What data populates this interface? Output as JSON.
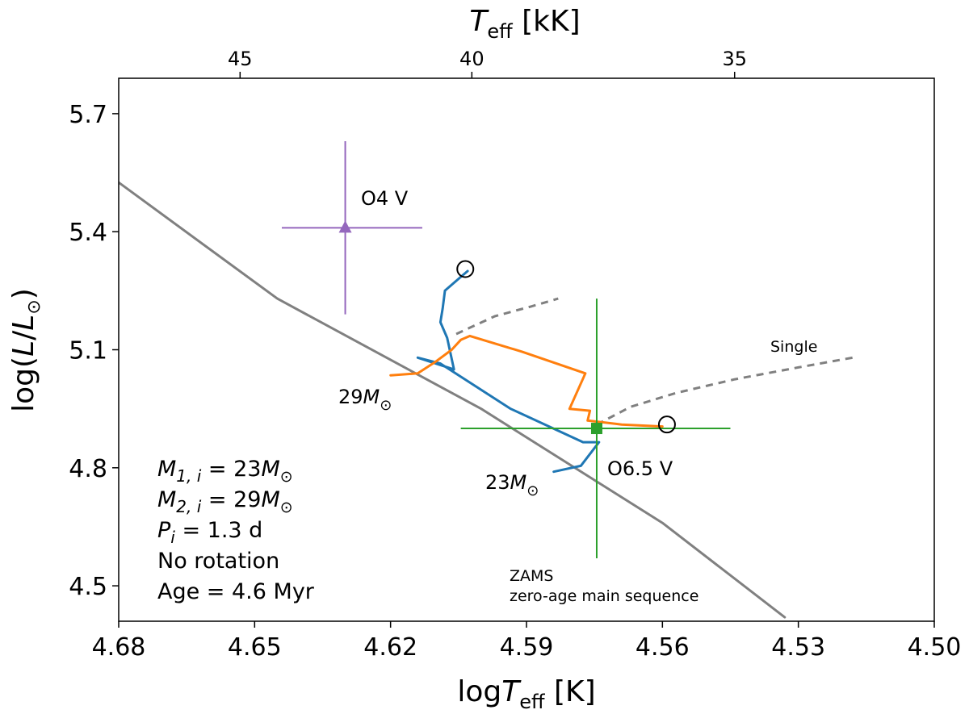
{
  "chart_data": {
    "type": "scatter",
    "title": "",
    "xlabel_main": "log",
    "xlabel_var": "T",
    "xlabel_sub": "eff",
    "xlabel_unit": " [K]",
    "ylabel_prefix": "log(",
    "ylabel_var": "L",
    "ylabel_mid": "/",
    "ylabel_var2": "L",
    "ylabel_sub": "⊙",
    "ylabel_suffix": ")",
    "top_xlabel_var": "T",
    "top_xlabel_sub": "eff",
    "top_xlabel_unit": " [kK]",
    "xlim": [
      4.68,
      4.5
    ],
    "ylim": [
      4.41,
      5.79
    ],
    "xticks": [
      4.68,
      4.65,
      4.62,
      4.59,
      4.56,
      4.53,
      4.5
    ],
    "xtick_labels": [
      "4.68",
      "4.65",
      "4.62",
      "4.59",
      "4.56",
      "4.53",
      "4.50"
    ],
    "yticks": [
      4.5,
      4.8,
      5.1,
      5.4,
      5.7
    ],
    "ytick_labels": [
      "4.5",
      "4.8",
      "5.1",
      "5.4",
      "5.7"
    ],
    "top_ticks_kK": [
      45,
      40,
      35
    ],
    "top_tick_labels": [
      "45",
      "40",
      "35"
    ],
    "series": [
      {
        "name": "ZAMS",
        "color": "#808080",
        "style": "solid",
        "x": [
          4.68,
          4.645,
          4.6,
          4.56,
          4.533
        ],
        "y": [
          5.525,
          5.23,
          4.95,
          4.66,
          4.42
        ]
      },
      {
        "name": "Single (upper)",
        "color": "#808080",
        "style": "dashed",
        "x": [
          4.6055,
          4.597,
          4.589,
          4.583
        ],
        "y": [
          5.14,
          5.185,
          5.21,
          5.23
        ]
      },
      {
        "name": "Single",
        "color": "#808080",
        "style": "dashed",
        "x": [
          4.5745,
          4.567,
          4.557,
          4.544,
          4.53,
          4.518
        ],
        "y": [
          4.91,
          4.955,
          4.99,
          5.025,
          5.055,
          5.08
        ]
      },
      {
        "name": "23 Msun track",
        "color": "#1f77b4",
        "style": "solid",
        "x": [
          4.584,
          4.578,
          4.574,
          4.5775,
          4.5935,
          4.609,
          4.614,
          4.606,
          4.6075,
          4.609,
          4.6085,
          4.608,
          4.6045,
          4.603
        ],
        "y": [
          4.79,
          4.805,
          4.865,
          4.865,
          4.95,
          5.065,
          5.08,
          5.05,
          5.13,
          5.17,
          5.205,
          5.25,
          5.285,
          5.3
        ]
      },
      {
        "name": "29 Msun track",
        "color": "#ff7f0e",
        "style": "solid",
        "x": [
          4.62,
          4.614,
          4.61,
          4.6065,
          4.6045,
          4.6025,
          4.591,
          4.577,
          4.5805,
          4.576,
          4.5765,
          4.569,
          4.56
        ],
        "y": [
          5.035,
          5.04,
          5.07,
          5.1,
          5.125,
          5.135,
          5.095,
          5.04,
          4.95,
          4.945,
          4.92,
          4.91,
          4.905
        ]
      }
    ],
    "observations": [
      {
        "name": "O4 V",
        "label": "O4 V",
        "color": "#9467bd",
        "marker": "triangle",
        "x": 4.63,
        "y": 5.41,
        "x_err": [
          4.644,
          4.613
        ],
        "y_err": [
          5.19,
          5.63
        ]
      },
      {
        "name": "O6.5 V",
        "label": "O6.5 V",
        "color": "#2ca02c",
        "marker": "square",
        "x": 4.5745,
        "y": 4.9,
        "x_err": [
          4.6045,
          4.545
        ],
        "y_err": [
          4.57,
          5.23
        ]
      }
    ],
    "endpoints": [
      {
        "x": 4.6035,
        "y": 5.305
      },
      {
        "x": 4.559,
        "y": 4.91
      }
    ],
    "annotations": {
      "track_label_29_num": "29",
      "track_label_23_num": "23",
      "msun_var": "M",
      "msun_sub": "⊙",
      "single": "Single",
      "zams_line1": "ZAMS",
      "zams_line2": "zero-age main sequence",
      "m1_var": "M",
      "m1_sub": "1, i",
      "m1_eq": " = 23",
      "m2_var": "M",
      "m2_sub": "2, i",
      "m2_eq": " = 29",
      "p_var": "P",
      "p_sub": "i",
      "p_eq": " = 1.3 d",
      "rotation": "No rotation",
      "age": "Age = 4.6 Myr"
    }
  }
}
